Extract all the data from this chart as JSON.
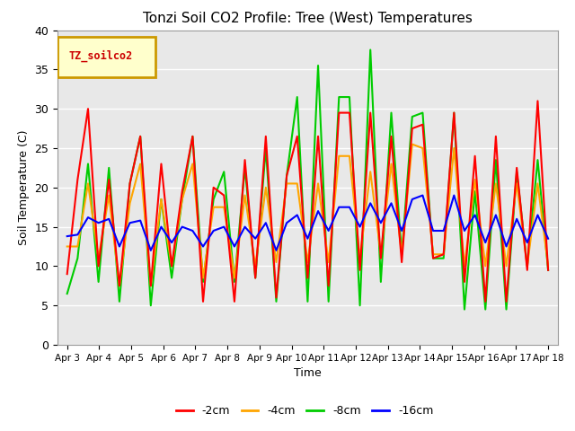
{
  "title": "Tonzi Soil CO2 Profile: Tree (West) Temperatures",
  "xlabel": "Time",
  "ylabel": "Soil Temperature (C)",
  "ylim": [
    0,
    40
  ],
  "bg_color": "#e8e8e8",
  "plot_bg": "#e8e8e8",
  "legend_label": "TZ_soilco2",
  "legend_bg": "#ffffcc",
  "legend_border": "#cc9900",
  "x_tick_labels": [
    "Apr 3",
    "Apr 4",
    "Apr 5",
    "Apr 6",
    "Apr 7",
    "Apr 8",
    "Apr 9",
    "Apr 10",
    "Apr 11",
    "Apr 12",
    "Apr 13",
    "Apr 14",
    "Apr 15",
    "Apr 16",
    "Apr 17",
    "Apr 18"
  ],
  "series": {
    "2cm": {
      "color": "#ff0000",
      "label": "-2cm",
      "values": [
        9.0,
        21.0,
        30.0,
        10.0,
        21.0,
        7.5,
        20.5,
        26.5,
        7.5,
        23.0,
        10.0,
        19.5,
        26.5,
        5.5,
        20.0,
        19.0,
        5.5,
        23.5,
        8.5,
        26.5,
        6.0,
        21.5,
        26.5,
        8.5,
        26.5,
        7.5,
        29.5,
        29.5,
        9.5,
        29.5,
        11.0,
        26.5,
        10.5,
        27.5,
        28.0,
        11.0,
        11.5,
        29.5,
        8.0,
        24.0,
        5.5,
        26.5,
        5.5,
        22.5,
        9.5,
        31.0,
        9.5
      ]
    },
    "4cm": {
      "color": "#ffa500",
      "label": "-4cm",
      "values": [
        12.5,
        12.5,
        20.5,
        11.0,
        19.0,
        7.5,
        18.0,
        23.0,
        7.5,
        18.5,
        10.0,
        18.5,
        23.0,
        8.5,
        17.5,
        17.5,
        8.5,
        19.0,
        10.0,
        20.0,
        10.5,
        20.5,
        20.5,
        10.5,
        20.5,
        10.5,
        24.0,
        24.0,
        11.0,
        22.0,
        11.5,
        23.0,
        11.5,
        25.5,
        25.0,
        11.5,
        11.5,
        25.0,
        10.0,
        21.0,
        10.0,
        20.5,
        10.0,
        20.5,
        10.0,
        20.5,
        10.0
      ]
    },
    "8cm": {
      "color": "#00cc00",
      "label": "-8cm",
      "values": [
        6.5,
        11.0,
        23.0,
        8.0,
        22.5,
        5.5,
        20.5,
        26.5,
        5.0,
        18.5,
        8.5,
        18.5,
        26.5,
        8.0,
        18.5,
        22.0,
        8.0,
        22.5,
        8.5,
        25.0,
        5.5,
        21.5,
        31.5,
        5.5,
        35.5,
        5.5,
        31.5,
        31.5,
        5.0,
        37.5,
        8.0,
        29.5,
        11.5,
        29.0,
        29.5,
        11.0,
        11.0,
        29.5,
        4.5,
        19.5,
        4.5,
        23.5,
        4.5,
        22.0,
        10.0,
        23.5,
        9.5
      ]
    },
    "16cm": {
      "color": "#0000ff",
      "label": "-16cm",
      "values": [
        13.8,
        14.0,
        16.2,
        15.5,
        16.0,
        12.5,
        15.5,
        15.8,
        12.0,
        15.0,
        13.0,
        15.0,
        14.5,
        12.5,
        14.5,
        15.0,
        12.5,
        15.0,
        13.5,
        15.5,
        12.0,
        15.5,
        16.5,
        13.5,
        17.0,
        14.5,
        17.5,
        17.5,
        15.0,
        18.0,
        15.5,
        18.0,
        14.5,
        18.5,
        19.0,
        14.5,
        14.5,
        19.0,
        14.5,
        16.5,
        13.0,
        16.5,
        12.5,
        16.0,
        13.0,
        16.5,
        13.5
      ]
    }
  }
}
